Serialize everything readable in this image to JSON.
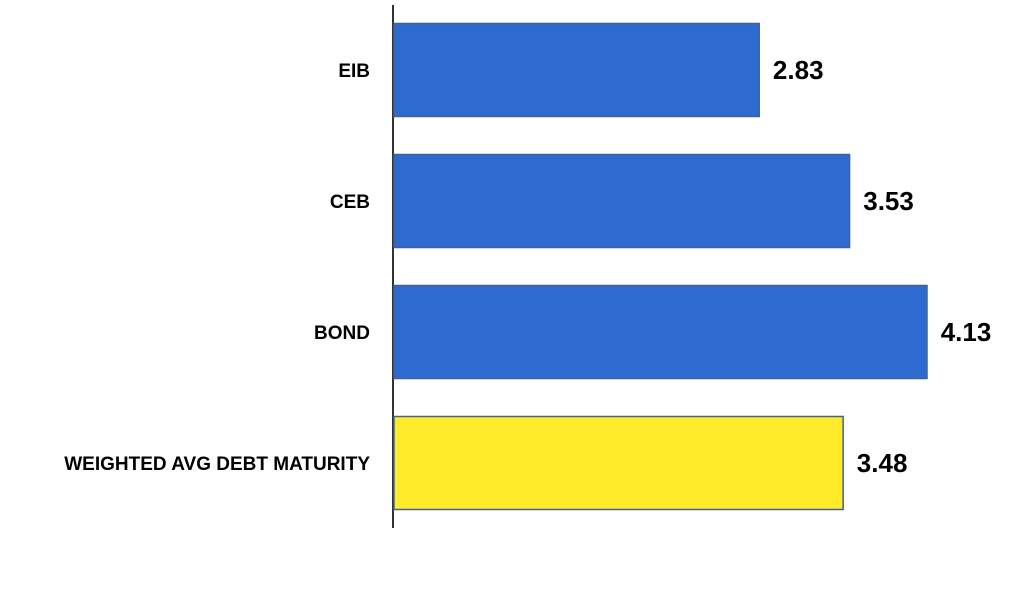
{
  "chart_data": {
    "type": "bar",
    "orientation": "horizontal",
    "categories": [
      "EIB",
      "CEB",
      "BOND",
      "WEIGHTED AVG DEBT MATURITY"
    ],
    "values": [
      2.83,
      3.53,
      4.13,
      3.48
    ],
    "colors": [
      "#2e6bd1",
      "#2e6bd1",
      "#2e6bd1",
      "#ffeb2a"
    ]
  }
}
